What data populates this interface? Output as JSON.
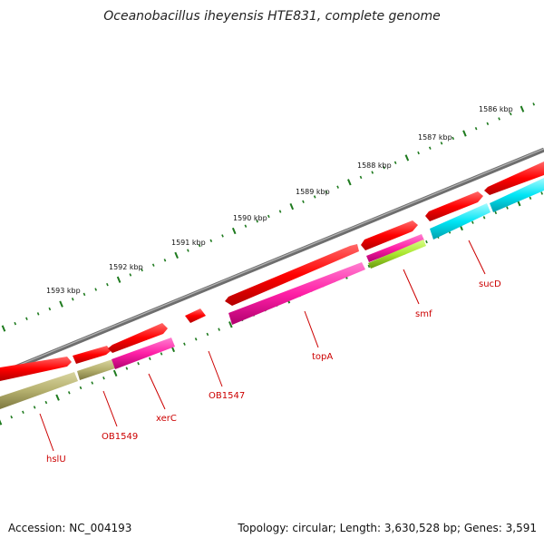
{
  "title": "Oceanobacillus iheyensis HTE831, complete genome",
  "footer": {
    "accession": "Accession: NC_004193",
    "summary": "Topology: circular; Length: 3,630,528 bp; Genes: 3,591"
  },
  "scale": {
    "ticks": [
      {
        "label": "1586 kbp",
        "kbp": 1586
      },
      {
        "label": "1587 kbp",
        "kbp": 1587
      },
      {
        "label": "1588 kbp",
        "kbp": 1588
      },
      {
        "label": "1589 kbp",
        "kbp": 1589
      },
      {
        "label": "1590 kbp",
        "kbp": 1590
      },
      {
        "label": "1591 kbp",
        "kbp": 1591
      },
      {
        "label": "1592 kbp",
        "kbp": 1592
      },
      {
        "label": "1593 kbp",
        "kbp": 1593
      }
    ]
  },
  "genes": [
    {
      "name": "hslU",
      "color": "#b5b06e"
    },
    {
      "name": "OB1549",
      "color": "#b5b06e"
    },
    {
      "name": "xerC",
      "color": "#ff1fa6"
    },
    {
      "name": "OB1547",
      "color": "#ff0000"
    },
    {
      "name": "topA",
      "color": "#ff1fa6"
    },
    {
      "name": "smf",
      "color": "#a8e62e"
    },
    {
      "name": "sucD",
      "color": "#00e5f5"
    }
  ],
  "colors": {
    "backbone": "#7a7a7a",
    "forward_strand": "#ff0000",
    "tick": "#1e7a1e",
    "gene_label": "#cc0000"
  }
}
